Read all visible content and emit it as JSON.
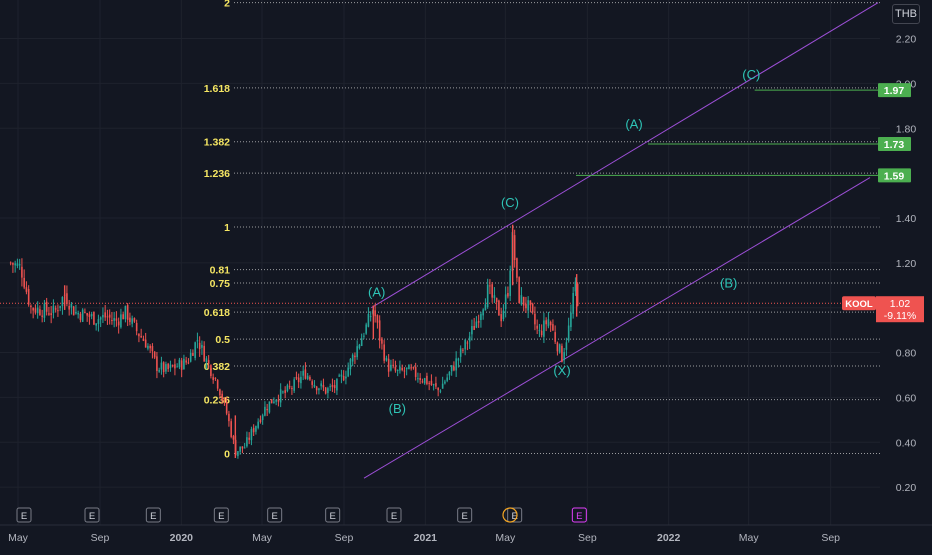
{
  "chart_data": {
    "type": "candlestick",
    "symbol": "KOOL",
    "currency": "THB",
    "last_price": "1.02",
    "change_pct": "-9.11%",
    "colors": {
      "up": "#26a69a",
      "down": "#ef5350",
      "background": "#131722",
      "grid": "#1e222d",
      "fib": "#f5e663",
      "channel": "#9c4fd6",
      "wave_label": "#2ec4b6",
      "target": "#4caf50"
    },
    "y_axis": {
      "scale": "linear",
      "range": [
        0.16,
        2.42
      ],
      "ticks": [
        "0.20",
        "0.40",
        "0.60",
        "0.80",
        "1.00",
        "1.20",
        "1.40",
        "1.80",
        "2.00",
        "2.20"
      ]
    },
    "x_axis": {
      "labels": [
        "May",
        "Sep",
        "2020",
        "May",
        "Sep",
        "2021",
        "May",
        "Sep",
        "2022",
        "May",
        "Sep"
      ]
    },
    "fib_levels": [
      {
        "label": "0",
        "price": 0.35
      },
      {
        "label": "0.236",
        "price": 0.59
      },
      {
        "label": "0.382",
        "price": 0.74
      },
      {
        "label": "0.5",
        "price": 0.86
      },
      {
        "label": "0.618",
        "price": 0.98
      },
      {
        "label": "0.75",
        "price": 1.11
      },
      {
        "label": "0.81",
        "price": 1.17
      },
      {
        "label": "1",
        "price": 1.36
      },
      {
        "label": "1.236",
        "price": 1.6
      },
      {
        "label": "1.382",
        "price": 1.74
      },
      {
        "label": "1.618",
        "price": 1.98
      },
      {
        "label": "2",
        "price": 2.36
      }
    ],
    "targets": [
      {
        "label": "1.97"
      },
      {
        "label": "1.73"
      },
      {
        "label": "1.59"
      }
    ],
    "wave_labels": [
      {
        "text": "(A)",
        "date": "2020-10-20",
        "price": 1.05
      },
      {
        "text": "(B)",
        "date": "2020-11-20",
        "price": 0.53
      },
      {
        "text": "(C)",
        "date": "2021-05-08",
        "price": 1.45
      },
      {
        "text": "(X)",
        "date": "2021-07-25",
        "price": 0.7
      },
      {
        "text": "(A)",
        "date": "2021-11-10",
        "price": 1.8
      },
      {
        "text": "(B)",
        "date": "2022-04-01",
        "price": 1.09
      },
      {
        "text": "(C)",
        "date": "2022-05-05",
        "price": 2.02
      }
    ],
    "events": [
      "E",
      "E",
      "E",
      "E",
      "E",
      "E",
      "E",
      "E",
      "E",
      "E"
    ],
    "series": [
      {
        "date": "2019-04-20",
        "price": 1.2
      },
      {
        "date": "2019-05-05",
        "price": 1.18
      },
      {
        "date": "2019-05-20",
        "price": 1.0
      },
      {
        "date": "2019-06-05",
        "price": 0.99
      },
      {
        "date": "2019-06-25",
        "price": 0.98
      },
      {
        "date": "2019-07-10",
        "price": 1.06
      },
      {
        "date": "2019-07-25",
        "price": 0.98
      },
      {
        "date": "2019-08-10",
        "price": 0.97
      },
      {
        "date": "2019-08-25",
        "price": 0.95
      },
      {
        "date": "2019-09-10",
        "price": 0.96
      },
      {
        "date": "2019-09-25",
        "price": 0.94
      },
      {
        "date": "2019-10-10",
        "price": 0.98
      },
      {
        "date": "2019-10-25",
        "price": 0.9
      },
      {
        "date": "2019-11-10",
        "price": 0.84
      },
      {
        "date": "2019-11-25",
        "price": 0.74
      },
      {
        "date": "2019-12-10",
        "price": 0.72
      },
      {
        "date": "2019-12-25",
        "price": 0.74
      },
      {
        "date": "2020-01-10",
        "price": 0.76
      },
      {
        "date": "2020-01-25",
        "price": 0.86
      },
      {
        "date": "2020-02-10",
        "price": 0.75
      },
      {
        "date": "2020-02-25",
        "price": 0.66
      },
      {
        "date": "2020-03-10",
        "price": 0.52
      },
      {
        "date": "2020-03-22",
        "price": 0.36
      },
      {
        "date": "2020-04-05",
        "price": 0.38
      },
      {
        "date": "2020-04-20",
        "price": 0.47
      },
      {
        "date": "2020-05-05",
        "price": 0.55
      },
      {
        "date": "2020-05-20",
        "price": 0.6
      },
      {
        "date": "2020-06-05",
        "price": 0.62
      },
      {
        "date": "2020-06-20",
        "price": 0.66
      },
      {
        "date": "2020-07-05",
        "price": 0.71
      },
      {
        "date": "2020-07-20",
        "price": 0.66
      },
      {
        "date": "2020-08-05",
        "price": 0.63
      },
      {
        "date": "2020-08-20",
        "price": 0.65
      },
      {
        "date": "2020-09-05",
        "price": 0.72
      },
      {
        "date": "2020-09-20",
        "price": 0.82
      },
      {
        "date": "2020-10-05",
        "price": 0.92
      },
      {
        "date": "2020-10-15",
        "price": 1.0
      },
      {
        "date": "2020-10-25",
        "price": 0.86
      },
      {
        "date": "2020-11-05",
        "price": 0.74
      },
      {
        "date": "2020-11-20",
        "price": 0.71
      },
      {
        "date": "2020-12-05",
        "price": 0.72
      },
      {
        "date": "2020-12-20",
        "price": 0.7
      },
      {
        "date": "2021-01-05",
        "price": 0.67
      },
      {
        "date": "2021-01-20",
        "price": 0.63
      },
      {
        "date": "2021-02-05",
        "price": 0.7
      },
      {
        "date": "2021-02-20",
        "price": 0.78
      },
      {
        "date": "2021-03-05",
        "price": 0.85
      },
      {
        "date": "2021-03-20",
        "price": 0.95
      },
      {
        "date": "2021-04-05",
        "price": 1.08
      },
      {
        "date": "2021-04-15",
        "price": 1.02
      },
      {
        "date": "2021-04-25",
        "price": 0.96
      },
      {
        "date": "2021-05-05",
        "price": 1.08
      },
      {
        "date": "2021-05-12",
        "price": 1.32
      },
      {
        "date": "2021-05-20",
        "price": 1.05
      },
      {
        "date": "2021-06-05",
        "price": 1.0
      },
      {
        "date": "2021-06-20",
        "price": 0.88
      },
      {
        "date": "2021-07-05",
        "price": 0.95
      },
      {
        "date": "2021-07-15",
        "price": 0.86
      },
      {
        "date": "2021-07-25",
        "price": 0.78
      },
      {
        "date": "2021-08-05",
        "price": 0.92
      },
      {
        "date": "2021-08-15",
        "price": 1.12
      },
      {
        "date": "2021-08-18",
        "price": 1.02
      }
    ]
  }
}
